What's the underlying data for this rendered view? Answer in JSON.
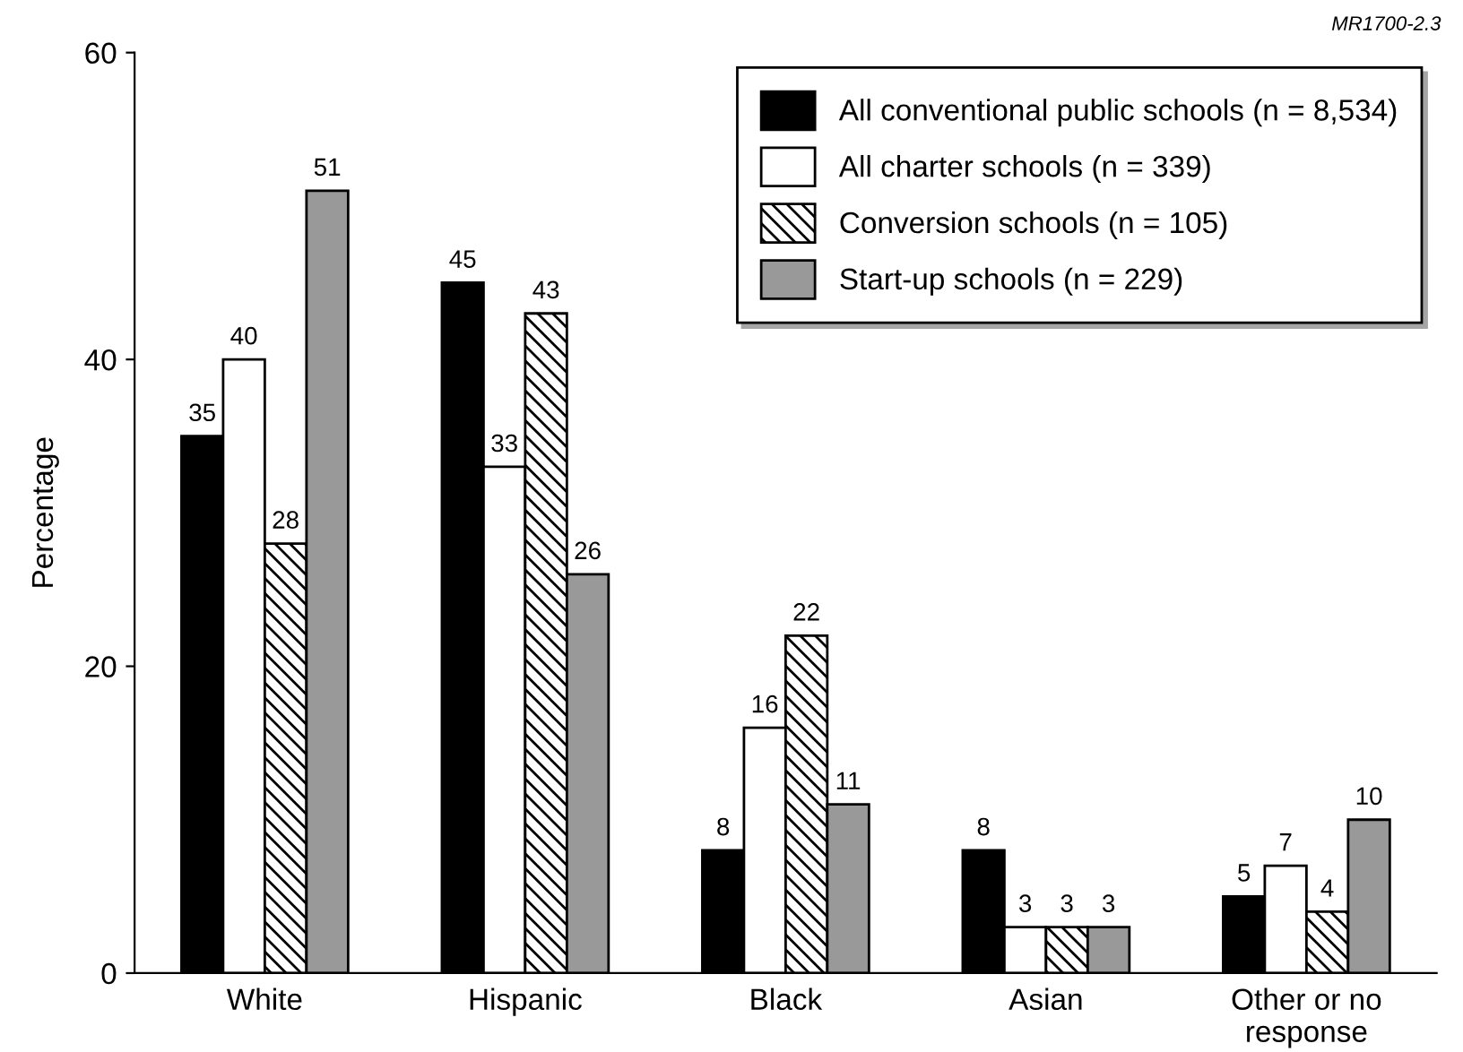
{
  "chart_data": {
    "type": "bar",
    "ylabel": "Percentage",
    "categories": [
      "White",
      "Hispanic",
      "Black",
      "Asian",
      "Other or no\nresponse"
    ],
    "series": [
      {
        "name": "All conventional public schools (n = 8,534)",
        "color": "#000000",
        "values": [
          35,
          45,
          8,
          8,
          5
        ]
      },
      {
        "name": "All charter schools (n = 339)",
        "color": "#ffffff",
        "values": [
          40,
          33,
          16,
          3,
          7
        ]
      },
      {
        "name": "Conversion schools (n = 105)",
        "color": "#000000",
        "values": [
          28,
          43,
          22,
          3,
          4
        ]
      },
      {
        "name": "Start-up schools (n = 229)",
        "color": "#999999",
        "values": [
          51,
          26,
          11,
          3,
          10
        ]
      }
    ],
    "ylim": [
      0,
      60
    ],
    "yticks": [
      0,
      20,
      40,
      60
    ],
    "grid": false,
    "legend": "top right",
    "data_labels": true,
    "annotations": [
      "MR1700-2.3"
    ]
  }
}
